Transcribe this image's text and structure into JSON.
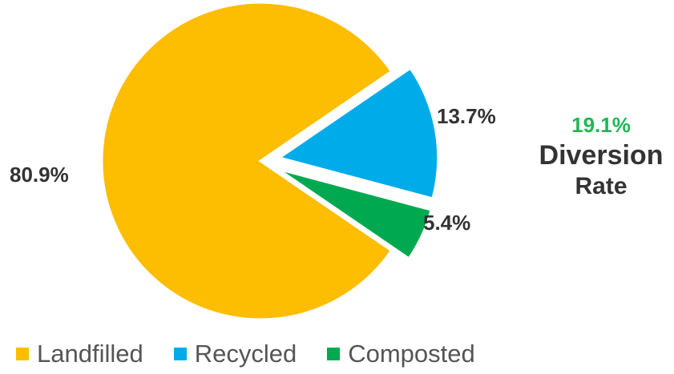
{
  "chart_data": {
    "type": "pie",
    "title": "",
    "slices": [
      {
        "name": "Landfilled",
        "value": 80.9,
        "label": "80.9%",
        "color": "#FDBD00",
        "exploded": false
      },
      {
        "name": "Recycled",
        "value": 13.7,
        "label": "13.7%",
        "color": "#00ABEA",
        "exploded": true
      },
      {
        "name": "Composted",
        "value": 5.4,
        "label": "5.4%",
        "color": "#00A94F",
        "exploded": true
      }
    ],
    "legend_position": "bottom-left"
  },
  "callout": {
    "value": "19.1%",
    "line1": "Diversion",
    "line2": "Rate",
    "value_color": "#1db954"
  }
}
